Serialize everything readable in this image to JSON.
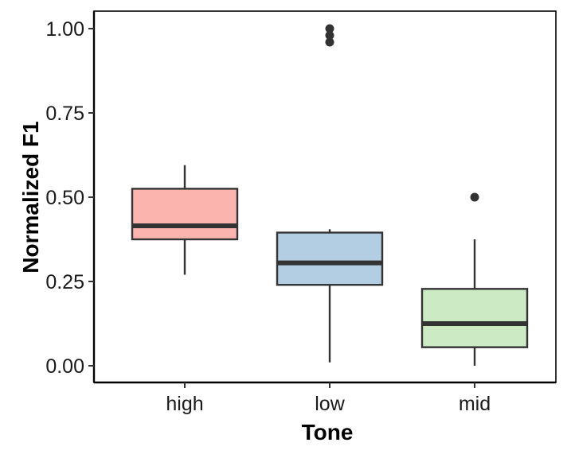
{
  "chart_data": {
    "type": "boxplot",
    "title": "",
    "xlabel": "Tone",
    "ylabel": "Normalized F1",
    "categories": [
      "high",
      "low",
      "mid"
    ],
    "ylim": [
      -0.05,
      1.05
    ],
    "yticks": [
      0.0,
      0.25,
      0.5,
      0.75,
      1.0
    ],
    "ytick_labels": [
      "0.00",
      "0.25",
      "0.50",
      "0.75",
      "1.00"
    ],
    "grid": false,
    "legend": "none",
    "boxes": [
      {
        "category": "high",
        "lower_whisker": 0.27,
        "q1": 0.375,
        "median": 0.415,
        "q3": 0.525,
        "upper_whisker": 0.595,
        "outliers": [],
        "color": "#fbb4ae"
      },
      {
        "category": "low",
        "lower_whisker": 0.01,
        "q1": 0.24,
        "median": 0.305,
        "q3": 0.395,
        "upper_whisker": 0.405,
        "outliers": [
          0.96,
          0.98,
          1.0
        ],
        "color": "#b3cde3"
      },
      {
        "category": "mid",
        "lower_whisker": 0.0,
        "q1": 0.055,
        "median": 0.125,
        "q3": 0.228,
        "upper_whisker": 0.375,
        "outliers": [
          0.5
        ],
        "color": "#ccebc5"
      }
    ],
    "edge_color": "#333333"
  }
}
